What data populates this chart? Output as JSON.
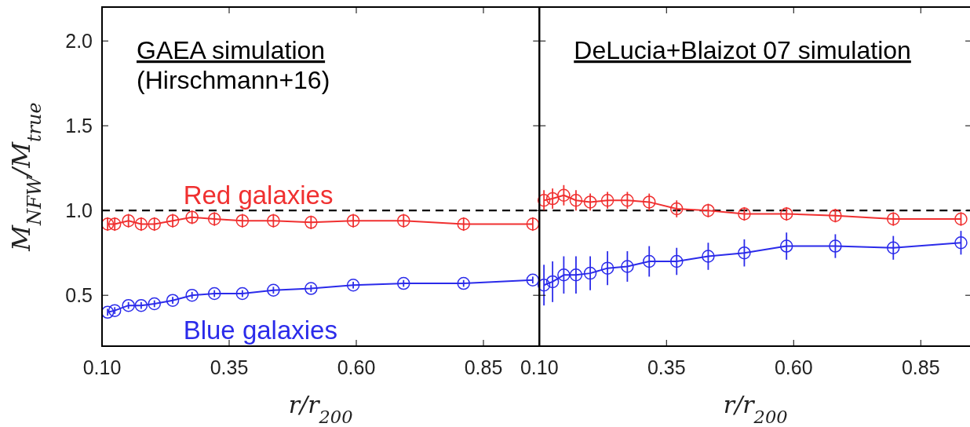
{
  "chart_data": [
    {
      "type": "line",
      "title": "GAEA simulation",
      "subtitle": "(Hirschmann+16)",
      "xlabel": "r/r$_{200}$",
      "ylabel": "M$_{NFW}$/M$_{true}$",
      "xlim": [
        0.1,
        0.96
      ],
      "xticks": [
        {
          "value": 0.1,
          "label": "0.10"
        },
        0.35,
        {
          "value": 0.6,
          "label": "0.60"
        },
        0.85
      ],
      "ylim": [
        0.2,
        2.2
      ],
      "yticks": [
        0.5,
        {
          "value": 1,
          "label": "1.0"
        },
        1.5,
        {
          "value": 2,
          "label": "2.0"
        }
      ],
      "marker": "circle",
      "grid": false,
      "legend": false,
      "ref_lines": [
        {
          "axis": "y",
          "value": 1,
          "label": null,
          "color": "#000000",
          "line_style": "dashed"
        }
      ],
      "x": [
        0.111,
        0.125,
        0.152,
        0.177,
        0.203,
        0.239,
        0.277,
        0.321,
        0.376,
        0.437,
        0.511,
        0.594,
        0.693,
        0.811,
        0.947
      ],
      "series": [
        {
          "name": "Red galaxies",
          "color": "#f03030",
          "values": [
            0.92,
            0.92,
            0.94,
            0.92,
            0.92,
            0.94,
            0.96,
            0.95,
            0.94,
            0.94,
            0.93,
            0.94,
            0.94,
            0.92,
            0.92
          ],
          "errors": [
            0.04,
            0.04,
            0.04,
            0.04,
            0.04,
            0.04,
            0.04,
            0.04,
            0.04,
            0.04,
            0.04,
            0.04,
            0.04,
            0.04,
            0.04
          ]
        },
        {
          "name": "Blue galaxies",
          "color": "#2b2bea",
          "values": [
            0.4,
            0.41,
            0.44,
            0.44,
            0.45,
            0.47,
            0.5,
            0.51,
            0.51,
            0.53,
            0.54,
            0.56,
            0.57,
            0.57,
            0.59
          ],
          "errors": [
            0.02,
            0.02,
            0.02,
            0.02,
            0.02,
            0.02,
            0.02,
            0.02,
            0.02,
            0.02,
            0.02,
            0.02,
            0.02,
            0.02,
            0.02
          ]
        }
      ]
    },
    {
      "type": "line",
      "title": "DeLucia+Blaizot 07 simulation",
      "xlabel": "r/r$_{200}$",
      "xlim": [
        0.1,
        0.95
      ],
      "xticks": [
        {
          "value": 0.1,
          "label": "0.10"
        },
        {
          "value": 0.35,
          "label": "0.35"
        },
        {
          "value": 0.6,
          "label": "0.60"
        },
        {
          "value": 0.85,
          "label": "0.85"
        }
      ],
      "ylim": [
        0.2,
        2.2
      ],
      "yticks": [
        0.5,
        1,
        1.5,
        2
      ],
      "tick_labels": "x",
      "marker": "circle",
      "grid": false,
      "legend": false,
      "ref_lines": [
        {
          "axis": "y",
          "value": 1,
          "label": null,
          "color": "#000000",
          "line_style": "dashed"
        }
      ],
      "x": [
        0.109,
        0.126,
        0.148,
        0.172,
        0.2,
        0.234,
        0.273,
        0.316,
        0.37,
        0.432,
        0.503,
        0.586,
        0.682,
        0.796,
        0.929
      ],
      "series": [
        {
          "color": "#f03030",
          "values": [
            1.06,
            1.07,
            1.09,
            1.06,
            1.05,
            1.06,
            1.06,
            1.05,
            1.01,
            1.0,
            0.98,
            0.98,
            0.97,
            0.95,
            0.95
          ],
          "errors": [
            0.06,
            0.06,
            0.06,
            0.06,
            0.05,
            0.05,
            0.05,
            0.05,
            0.05,
            0.04,
            0.04,
            0.04,
            0.04,
            0.04,
            0.04
          ]
        },
        {
          "color": "#2b2bea",
          "values": [
            0.56,
            0.58,
            0.62,
            0.62,
            0.63,
            0.66,
            0.67,
            0.7,
            0.7,
            0.73,
            0.75,
            0.79,
            0.79,
            0.78,
            0.81
          ],
          "errors": [
            0.12,
            0.12,
            0.11,
            0.11,
            0.1,
            0.1,
            0.09,
            0.09,
            0.08,
            0.08,
            0.08,
            0.08,
            0.07,
            0.07,
            0.07
          ]
        }
      ]
    }
  ]
}
